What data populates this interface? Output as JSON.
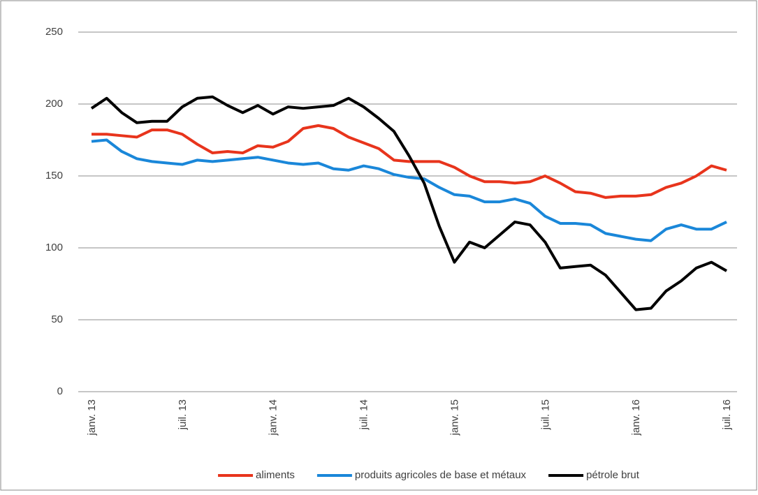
{
  "chart_data": {
    "type": "line",
    "categories": [
      "janv. 13",
      null,
      null,
      null,
      null,
      null,
      "juil. 13",
      null,
      null,
      null,
      null,
      null,
      "janv. 14",
      null,
      null,
      null,
      null,
      null,
      "juil. 14",
      null,
      null,
      null,
      null,
      null,
      "janv. 15",
      null,
      null,
      null,
      null,
      null,
      "juil. 15",
      null,
      null,
      null,
      null,
      null,
      "janv. 16",
      null,
      null,
      null,
      null,
      null,
      "juil. 16"
    ],
    "series": [
      {
        "name": "aliments",
        "color": "#e8341c",
        "values": [
          179,
          179,
          178,
          177,
          182,
          182,
          179,
          172,
          166,
          167,
          166,
          171,
          170,
          174,
          183,
          185,
          183,
          177,
          173,
          169,
          161,
          160,
          160,
          160,
          156,
          150,
          146,
          146,
          145,
          146,
          150,
          145,
          139,
          138,
          135,
          136,
          136,
          137,
          142,
          145,
          150,
          157,
          154
        ]
      },
      {
        "name": "produits agricoles de base et métaux",
        "color": "#1a87d9",
        "values": [
          174,
          175,
          167,
          162,
          160,
          159,
          158,
          161,
          160,
          161,
          162,
          163,
          161,
          159,
          158,
          159,
          155,
          154,
          157,
          155,
          151,
          149,
          148,
          142,
          137,
          136,
          132,
          132,
          134,
          131,
          122,
          117,
          117,
          116,
          110,
          108,
          106,
          105,
          113,
          116,
          113,
          113,
          118
        ]
      },
      {
        "name": "pétrole brut",
        "color": "#000000",
        "values": [
          197,
          204,
          194,
          187,
          188,
          188,
          198,
          204,
          205,
          199,
          194,
          199,
          193,
          198,
          197,
          198,
          199,
          204,
          198,
          190,
          181,
          164,
          145,
          115,
          90,
          104,
          100,
          109,
          118,
          116,
          104,
          86,
          87,
          88,
          81,
          69,
          57,
          58,
          70,
          77,
          86,
          90,
          84
        ]
      }
    ],
    "ylim": [
      0,
      250
    ],
    "yticks": [
      0,
      50,
      100,
      150,
      200,
      250
    ],
    "grid": true,
    "legend": "bottom"
  }
}
